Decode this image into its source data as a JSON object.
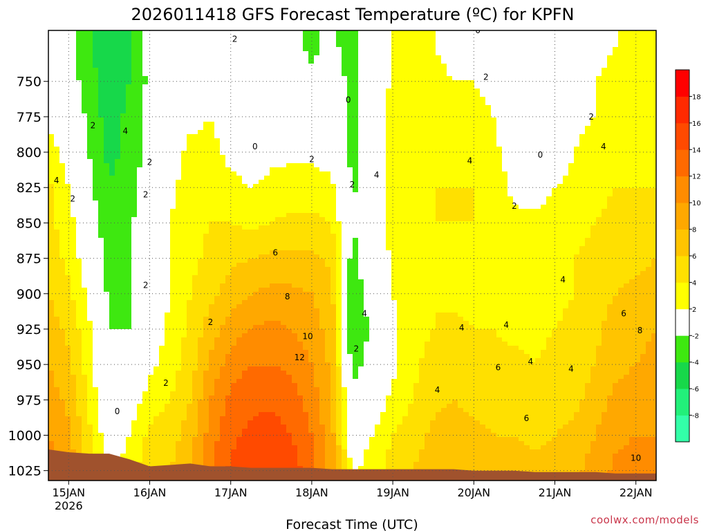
{
  "chart_data": {
    "type": "heatmap",
    "title": "2026011418 GFS Forecast Temperature (ºC) for KPFN",
    "xlabel": "Forecast Time (UTC)",
    "ylabel": "Pressure (hPa)",
    "credit": "coolwx.com/models",
    "x_ticks": [
      {
        "label": "15JAN",
        "sub": "2026",
        "day": 0.0
      },
      {
        "label": "16JAN",
        "sub": "",
        "day": 1.0
      },
      {
        "label": "17JAN",
        "sub": "",
        "day": 2.0
      },
      {
        "label": "18JAN",
        "sub": "",
        "day": 3.0
      },
      {
        "label": "19JAN",
        "sub": "",
        "day": 4.0
      },
      {
        "label": "20JAN",
        "sub": "",
        "day": 5.0
      },
      {
        "label": "21JAN",
        "sub": "",
        "day": 6.0
      },
      {
        "label": "22JAN",
        "sub": "",
        "day": 7.0
      }
    ],
    "xlim_days": [
      -0.25,
      7.25
    ],
    "y_ticks": [
      750,
      775,
      800,
      825,
      850,
      875,
      900,
      925,
      950,
      975,
      1000,
      1025
    ],
    "ylim_hpa": [
      714,
      1032
    ],
    "colorbar": {
      "bounds": [
        -10,
        -8,
        -6,
        -4,
        -2,
        2,
        4,
        6,
        8,
        10,
        12,
        14,
        16,
        18,
        20
      ],
      "tick_labels": [
        "-8",
        "-6",
        "-4",
        "-2",
        "2",
        "4",
        "6",
        "8",
        "10",
        "12",
        "14",
        "16",
        "18"
      ],
      "tick_values": [
        -8,
        -6,
        -4,
        -2,
        2,
        4,
        6,
        8,
        10,
        12,
        14,
        16,
        18
      ],
      "colors": [
        "#33ffa8",
        "#22f07a",
        "#17d84a",
        "#3ee810",
        "#ffffff",
        "#ffff00",
        "#ffe000",
        "#ffc400",
        "#ffa800",
        "#ff8c00",
        "#ff6a00",
        "#ff4a00",
        "#ff2a00",
        "#ff0000"
      ]
    },
    "ground_color": "#a0522d",
    "ground_hpa": [
      1010,
      1012,
      1013,
      1013,
      1017,
      1022,
      1021,
      1020,
      1022,
      1022,
      1023,
      1023,
      1023,
      1023,
      1024,
      1024,
      1024,
      1024,
      1024,
      1024,
      1024,
      1025,
      1025,
      1025,
      1026,
      1026,
      1026,
      1026,
      1027,
      1027,
      1027
    ],
    "temperature_grid": {
      "time_days": [
        -0.25,
        0.0,
        0.25,
        0.5,
        0.75,
        1.0,
        1.25,
        1.5,
        1.75,
        2.0,
        2.25,
        2.5,
        2.75,
        3.0,
        3.25,
        3.5,
        3.75,
        4.0,
        4.25,
        4.5,
        4.75,
        5.0,
        5.25,
        5.5,
        5.75,
        6.0,
        6.25,
        6.5,
        6.75,
        7.0,
        7.25
      ],
      "pressure_hpa": [
        725,
        750,
        775,
        800,
        825,
        850,
        875,
        900,
        925,
        950,
        975,
        1000,
        1025
      ],
      "values": [
        [
          -0.5,
          -1.5,
          -3.5,
          -6.0,
          -4.0,
          -1.0,
          0.5,
          1.0,
          0.5,
          0.0,
          -0.5,
          -1.0,
          -1.5,
          -2.5,
          -1.5,
          -3.0,
          -0.5,
          2.5,
          2.5,
          2.0,
          1.5,
          1.5,
          0.5,
          -0.5,
          -0.5,
          0.5,
          1.0,
          1.5,
          2.0,
          2.5,
          3.0
        ],
        [
          0.0,
          -1.0,
          -3.0,
          -5.5,
          -4.0,
          -1.5,
          0.5,
          1.0,
          1.0,
          0.5,
          0.0,
          0.0,
          -0.5,
          -1.5,
          -1.0,
          -2.5,
          0.0,
          2.5,
          2.5,
          2.5,
          2.0,
          2.0,
          1.0,
          -0.5,
          -0.5,
          0.5,
          1.0,
          2.0,
          2.5,
          3.0,
          3.0
        ],
        [
          1.5,
          0.0,
          -2.5,
          -5.0,
          -3.5,
          -1.0,
          0.5,
          1.5,
          2.0,
          1.0,
          0.5,
          0.5,
          0.5,
          0.0,
          -0.5,
          -2.5,
          0.5,
          2.5,
          2.5,
          3.0,
          3.0,
          3.0,
          2.0,
          0.0,
          -0.5,
          0.5,
          1.5,
          2.0,
          2.5,
          3.0,
          3.0
        ],
        [
          3.0,
          1.0,
          -2.0,
          -4.5,
          -3.5,
          -1.0,
          1.0,
          2.5,
          2.5,
          1.5,
          1.0,
          1.5,
          1.5,
          1.5,
          1.0,
          -2.5,
          0.5,
          2.5,
          3.0,
          3.5,
          3.5,
          3.5,
          2.5,
          1.0,
          -0.5,
          1.0,
          2.0,
          3.0,
          3.5,
          3.5,
          3.5
        ],
        [
          4.5,
          2.0,
          -1.5,
          -4.0,
          -3.0,
          -0.5,
          1.5,
          3.0,
          3.0,
          2.5,
          2.0,
          2.5,
          3.0,
          3.0,
          2.5,
          -2.5,
          0.5,
          2.5,
          3.0,
          4.0,
          4.0,
          4.0,
          3.0,
          1.5,
          1.0,
          2.0,
          2.5,
          3.5,
          4.0,
          4.0,
          4.0
        ],
        [
          4.5,
          3.0,
          -0.5,
          -3.5,
          -2.5,
          0.0,
          2.0,
          3.5,
          4.0,
          4.0,
          3.5,
          4.0,
          4.5,
          4.5,
          4.0,
          -2.0,
          0.5,
          2.5,
          3.0,
          4.0,
          4.0,
          4.0,
          3.0,
          2.5,
          2.5,
          3.0,
          3.5,
          4.0,
          4.5,
          5.0,
          5.0
        ],
        [
          5.0,
          3.5,
          0.5,
          -3.0,
          -2.5,
          0.0,
          2.0,
          3.5,
          4.5,
          5.5,
          6.0,
          6.5,
          6.5,
          6.5,
          5.5,
          -3.0,
          0.0,
          2.5,
          3.0,
          4.0,
          3.5,
          4.0,
          3.0,
          3.0,
          3.0,
          3.5,
          4.0,
          4.5,
          5.0,
          5.5,
          6.0
        ],
        [
          6.0,
          4.5,
          1.5,
          -2.5,
          -2.5,
          0.0,
          2.0,
          4.0,
          5.5,
          7.0,
          8.0,
          8.5,
          8.5,
          8.0,
          6.5,
          -3.5,
          -0.5,
          2.0,
          3.0,
          4.0,
          3.5,
          3.5,
          3.0,
          3.0,
          3.0,
          3.5,
          4.0,
          5.0,
          6.0,
          6.5,
          7.0
        ],
        [
          7.0,
          5.5,
          2.5,
          -2.0,
          -2.0,
          0.5,
          2.5,
          4.5,
          7.0,
          9.0,
          10.0,
          10.5,
          10.0,
          9.0,
          7.0,
          -4.0,
          -1.5,
          1.5,
          3.0,
          4.0,
          4.5,
          4.0,
          4.0,
          3.5,
          3.5,
          4.0,
          4.5,
          5.5,
          7.0,
          7.5,
          8.0
        ],
        [
          8.0,
          6.5,
          3.0,
          -1.5,
          -1.0,
          1.5,
          3.0,
          5.0,
          8.5,
          11.0,
          12.0,
          12.0,
          11.5,
          10.0,
          7.5,
          -3.0,
          -1.0,
          1.5,
          3.5,
          5.0,
          5.5,
          5.0,
          4.5,
          4.5,
          4.0,
          4.5,
          5.0,
          6.0,
          7.5,
          8.0,
          8.5
        ],
        [
          9.0,
          7.5,
          3.5,
          -0.5,
          0.5,
          3.0,
          4.0,
          6.0,
          10.0,
          12.5,
          13.5,
          13.5,
          13.0,
          11.0,
          8.0,
          -1.0,
          0.5,
          2.5,
          4.0,
          5.5,
          6.0,
          5.5,
          5.0,
          5.0,
          4.5,
          5.0,
          5.5,
          7.0,
          8.5,
          9.0,
          9.0
        ],
        [
          10.0,
          8.5,
          4.5,
          0.5,
          2.0,
          4.5,
          5.0,
          7.0,
          11.0,
          13.5,
          14.5,
          15.0,
          14.0,
          12.0,
          8.5,
          0.5,
          2.0,
          4.0,
          5.0,
          6.5,
          7.0,
          6.5,
          6.0,
          6.0,
          5.5,
          6.0,
          6.5,
          8.0,
          9.5,
          10.0,
          10.0
        ],
        [
          11.0,
          9.5,
          5.5,
          1.5,
          3.0,
          5.5,
          6.0,
          8.0,
          12.0,
          14.5,
          15.5,
          16.0,
          15.0,
          13.0,
          9.0,
          1.5,
          3.0,
          5.0,
          6.0,
          7.5,
          8.0,
          7.5,
          7.0,
          7.0,
          6.5,
          7.0,
          7.5,
          9.0,
          10.5,
          11.0,
          11.0
        ]
      ]
    },
    "contour_labels": [
      {
        "text": "2",
        "day": 2.05,
        "hpa": 722
      },
      {
        "text": "0",
        "day": 5.05,
        "hpa": 716
      },
      {
        "text": "2",
        "day": 5.15,
        "hpa": 749
      },
      {
        "text": "0",
        "day": 3.45,
        "hpa": 765
      },
      {
        "text": "2",
        "day": 6.45,
        "hpa": 777
      },
      {
        "text": "2",
        "day": 0.3,
        "hpa": 783
      },
      {
        "text": "4",
        "day": 0.7,
        "hpa": 787
      },
      {
        "text": "0",
        "day": 2.3,
        "hpa": 798
      },
      {
        "text": "4",
        "day": 6.6,
        "hpa": 798
      },
      {
        "text": "0",
        "day": 5.82,
        "hpa": 804
      },
      {
        "text": "4",
        "day": 4.95,
        "hpa": 808
      },
      {
        "text": "2",
        "day": 1.0,
        "hpa": 809
      },
      {
        "text": "2",
        "day": 3.0,
        "hpa": 807
      },
      {
        "text": "2",
        "day": 3.5,
        "hpa": 825
      },
      {
        "text": "4",
        "day": 3.8,
        "hpa": 818
      },
      {
        "text": "4",
        "day": -0.15,
        "hpa": 822
      },
      {
        "text": "2",
        "day": 0.05,
        "hpa": 835
      },
      {
        "text": "2",
        "day": 5.5,
        "hpa": 840
      },
      {
        "text": "2",
        "day": 0.95,
        "hpa": 832
      },
      {
        "text": "6",
        "day": 2.55,
        "hpa": 873
      },
      {
        "text": "4",
        "day": 6.1,
        "hpa": 892
      },
      {
        "text": "2",
        "day": 0.95,
        "hpa": 896
      },
      {
        "text": "8",
        "day": 2.7,
        "hpa": 904
      },
      {
        "text": "4",
        "day": 3.65,
        "hpa": 916
      },
      {
        "text": "6",
        "day": 6.85,
        "hpa": 916
      },
      {
        "text": "2",
        "day": 1.75,
        "hpa": 922
      },
      {
        "text": "4",
        "day": 4.85,
        "hpa": 926
      },
      {
        "text": "4",
        "day": 5.4,
        "hpa": 924
      },
      {
        "text": "8",
        "day": 7.05,
        "hpa": 928
      },
      {
        "text": "10",
        "day": 2.95,
        "hpa": 932
      },
      {
        "text": "2",
        "day": 3.55,
        "hpa": 941
      },
      {
        "text": "12",
        "day": 2.85,
        "hpa": 947
      },
      {
        "text": "4",
        "day": 5.7,
        "hpa": 950
      },
      {
        "text": "6",
        "day": 5.3,
        "hpa": 954
      },
      {
        "text": "4",
        "day": 6.2,
        "hpa": 955
      },
      {
        "text": "2",
        "day": 1.2,
        "hpa": 965
      },
      {
        "text": "4",
        "day": 4.55,
        "hpa": 970
      },
      {
        "text": "0",
        "day": 0.6,
        "hpa": 985
      },
      {
        "text": "6",
        "day": 5.65,
        "hpa": 990
      },
      {
        "text": "10",
        "day": 7.0,
        "hpa": 1018
      }
    ]
  }
}
